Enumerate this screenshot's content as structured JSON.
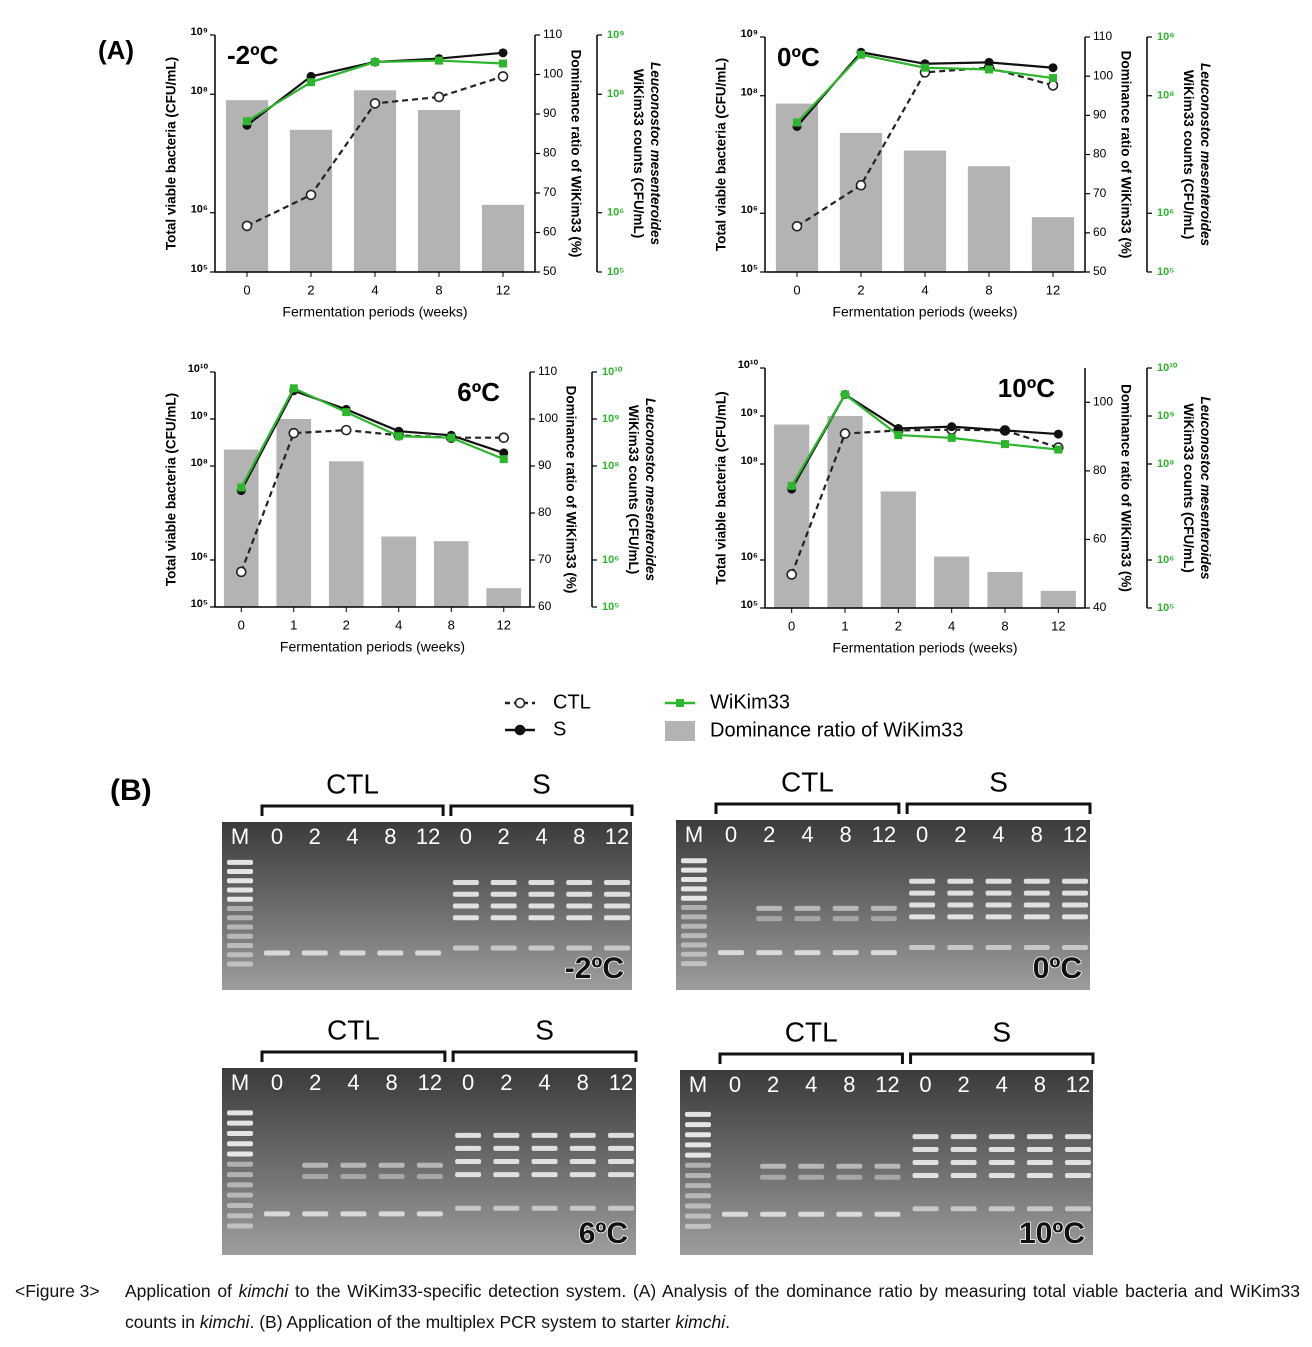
{
  "panel_a": "(A)",
  "panel_b": "(B)",
  "legend": [
    {
      "name": "CTL",
      "color": "#222222",
      "marker": "open-circle",
      "dash": true
    },
    {
      "name": "S",
      "color": "#111111",
      "marker": "circle",
      "dash": false
    },
    {
      "name": "WiKim33",
      "color": "#2db52d",
      "marker": "square",
      "dash": false
    },
    {
      "name": "Dominance ratio of WiKim33",
      "color": "#b3b3b3",
      "marker": "bar",
      "dash": false
    }
  ],
  "chart_data": [
    {
      "type": "bar-line",
      "label": "-2ºC",
      "label_corner": "top-left",
      "xlabel": "Fermentation periods (weeks)",
      "ylabel": "Total viable bacteria (CFU/mL)",
      "y2label": "Dominance ratio of WiKim33 (%)",
      "y3label_italic": "Leuconostoc mesenteroides",
      "y3label": "WiKim33 counts (CFU/mL)",
      "categories": [
        "0",
        "2",
        "4",
        "8",
        "12"
      ],
      "log_y": true,
      "ylim": [
        100000.0,
        1000000000.0
      ],
      "yticks": [
        {
          "value": 100000.0,
          "label": "10⁵"
        },
        {
          "value": 1000000.0,
          "label": "10⁶"
        },
        {
          "value": 100000000.0,
          "label": "10⁸"
        },
        {
          "value": 1000000000.0,
          "label": "10⁹"
        }
      ],
      "y2lim": [
        50,
        110
      ],
      "y2ticks": [
        50,
        60,
        70,
        80,
        90,
        100,
        110
      ],
      "y3lim": [
        100000.0,
        1000000000.0
      ],
      "y3ticks": [
        {
          "value": 100000.0,
          "label": "10⁵"
        },
        {
          "value": 1000000.0,
          "label": "10⁶"
        },
        {
          "value": 100000000.0,
          "label": "10⁸"
        },
        {
          "value": 1000000000.0,
          "label": "10⁹"
        }
      ],
      "series": [
        {
          "values": [
            600000.0,
            2000000.0,
            70000000.0,
            90000000.0,
            200000000.0
          ]
        },
        {
          "values": [
            30000000.0,
            200000000.0,
            350000000.0,
            400000000.0,
            500000000.0
          ]
        },
        {
          "values": [
            35000000.0,
            160000000.0,
            350000000.0,
            370000000.0,
            330000000.0
          ]
        },
        {
          "axis": "y2",
          "values": [
            93.5,
            86,
            96,
            91,
            67
          ]
        }
      ]
    },
    {
      "type": "bar-line",
      "label": "0ºC",
      "label_corner": "top-left",
      "xlabel": "Fermentation periods (weeks)",
      "ylabel": "Total viable bacteria (CFU/mL)",
      "y2label": "Dominance ratio of WiKim33 (%)",
      "y3label_italic": "Leuconostoc mesenteroides",
      "y3label": "WiKim33 counts (CFU/mL)",
      "categories": [
        "0",
        "2",
        "4",
        "8",
        "12"
      ],
      "log_y": true,
      "ylim": [
        100000.0,
        1000000000.0
      ],
      "yticks": [
        {
          "value": 100000.0,
          "label": "10⁵"
        },
        {
          "value": 1000000.0,
          "label": "10⁶"
        },
        {
          "value": 100000000.0,
          "label": "10⁸"
        },
        {
          "value": 1000000000.0,
          "label": "10⁹"
        }
      ],
      "y2lim": [
        50,
        110
      ],
      "y2ticks": [
        50,
        60,
        70,
        80,
        90,
        100,
        110
      ],
      "y3lim": [
        100000.0,
        1000000000.0
      ],
      "y3ticks": [
        {
          "value": 100000.0,
          "label": "10⁵"
        },
        {
          "value": 1000000.0,
          "label": "10⁶"
        },
        {
          "value": 100000000.0,
          "label": "10⁸"
        },
        {
          "value": 1000000000.0,
          "label": "10⁹"
        }
      ],
      "series": [
        {
          "values": [
            600000.0,
            3000000.0,
            250000000.0,
            300000000.0,
            150000000.0
          ]
        },
        {
          "values": [
            30000000.0,
            550000000.0,
            350000000.0,
            370000000.0,
            300000000.0
          ]
        },
        {
          "values": [
            35000000.0,
            500000000.0,
            300000000.0,
            280000000.0,
            200000000.0
          ]
        },
        {
          "axis": "y2",
          "values": [
            93,
            85.5,
            81,
            77,
            64
          ]
        }
      ]
    },
    {
      "type": "bar-line",
      "label": "6ºC",
      "label_corner": "top-right",
      "xlabel": "Fermentation periods (weeks)",
      "ylabel": "Total viable bacteria (CFU/mL)",
      "y2label": "Dominance ratio of WiKim33 (%)",
      "y3label_italic": "Leuconostoc mesenteroides",
      "y3label": "WiKim33 counts (CFU/mL)",
      "categories": [
        "0",
        "1",
        "2",
        "4",
        "8",
        "12"
      ],
      "log_y": true,
      "ylim": [
        100000.0,
        10000000000.0
      ],
      "yticks": [
        {
          "value": 100000.0,
          "label": "10⁵"
        },
        {
          "value": 1000000.0,
          "label": "10⁶"
        },
        {
          "value": 100000000.0,
          "label": "10⁸"
        },
        {
          "value": 1000000000.0,
          "label": "10⁹"
        },
        {
          "value": 10000000000.0,
          "label": "10¹⁰"
        }
      ],
      "y2lim": [
        60,
        110
      ],
      "y2ticks": [
        60,
        70,
        80,
        90,
        100,
        110
      ],
      "y3lim": [
        100000.0,
        10000000000.0
      ],
      "y3ticks": [
        {
          "value": 100000.0,
          "label": "10⁵"
        },
        {
          "value": 1000000.0,
          "label": "10⁶"
        },
        {
          "value": 100000000.0,
          "label": "10⁸"
        },
        {
          "value": 1000000000.0,
          "label": "10⁹"
        },
        {
          "value": 10000000000.0,
          "label": "10¹⁰"
        }
      ],
      "series": [
        {
          "values": [
            560000.0,
            500000000.0,
            580000000.0,
            450000000.0,
            400000000.0,
            400000000.0
          ]
        },
        {
          "values": [
            30000000.0,
            4000000000.0,
            1600000000.0,
            550000000.0,
            450000000.0,
            190000000.0
          ]
        },
        {
          "values": [
            35000000.0,
            4500000000.0,
            1400000000.0,
            430000000.0,
            400000000.0,
            140000000.0
          ]
        },
        {
          "axis": "y2",
          "values": [
            93.5,
            100,
            91,
            75,
            74,
            64
          ]
        }
      ]
    },
    {
      "type": "bar-line",
      "label": "10ºC",
      "label_corner": "top-right",
      "xlabel": "Fermentation periods (weeks)",
      "ylabel": "Total viable bacteria (CFU/mL)",
      "y2label": "Dominance ratio of WiKim33 (%)",
      "y3label_italic": "Leuconostoc mesenteroides",
      "y3label": "WiKim33 counts (CFU/mL)",
      "categories": [
        "0",
        "1",
        "2",
        "4",
        "8",
        "12"
      ],
      "log_y": true,
      "ylim": [
        100000.0,
        10000000000.0
      ],
      "yticks": [
        {
          "value": 100000.0,
          "label": "10⁵"
        },
        {
          "value": 1000000.0,
          "label": "10⁶"
        },
        {
          "value": 100000000.0,
          "label": "10⁸"
        },
        {
          "value": 1000000000.0,
          "label": "10⁹"
        },
        {
          "value": 10000000000.0,
          "label": "10¹⁰"
        }
      ],
      "y2lim": [
        40,
        110
      ],
      "y2ticks": [
        40,
        60,
        80,
        100
      ],
      "y3lim": [
        100000.0,
        10000000000.0
      ],
      "y3ticks": [
        {
          "value": 100000.0,
          "label": "10⁵"
        },
        {
          "value": 1000000.0,
          "label": "10⁶"
        },
        {
          "value": 100000000.0,
          "label": "10⁸"
        },
        {
          "value": 1000000000.0,
          "label": "10⁹"
        },
        {
          "value": 10000000000.0,
          "label": "10¹⁰"
        }
      ],
      "series": [
        {
          "values": [
            500000.0,
            430000000.0,
            500000000.0,
            520000000.0,
            500000000.0,
            220000000.0
          ]
        },
        {
          "values": [
            30000000.0,
            2800000000.0,
            550000000.0,
            600000000.0,
            500000000.0,
            420000000.0
          ]
        },
        {
          "values": [
            35000000.0,
            2800000000.0,
            400000000.0,
            350000000.0,
            260000000.0,
            200000000.0
          ]
        },
        {
          "axis": "y2",
          "values": [
            93.5,
            96,
            74,
            55,
            50.5,
            45
          ]
        }
      ]
    }
  ],
  "gels": [
    {
      "groups": [
        "CTL",
        "S"
      ],
      "lanes": [
        "M",
        "0",
        "2",
        "4",
        "8",
        "12",
        "0",
        "2",
        "4",
        "8",
        "12"
      ],
      "label": "-2ºC"
    },
    {
      "groups": [
        "CTL",
        "S"
      ],
      "lanes": [
        "M",
        "0",
        "2",
        "4",
        "8",
        "12",
        "0",
        "2",
        "4",
        "8",
        "12"
      ],
      "label": "0ºC"
    },
    {
      "groups": [
        "CTL",
        "S"
      ],
      "lanes": [
        "M",
        "0",
        "2",
        "4",
        "8",
        "12",
        "0",
        "2",
        "4",
        "8",
        "12"
      ],
      "label": "6ºC"
    },
    {
      "groups": [
        "CTL",
        "S"
      ],
      "lanes": [
        "M",
        "0",
        "2",
        "4",
        "8",
        "12",
        "0",
        "2",
        "4",
        "8",
        "12"
      ],
      "label": "10ºC"
    }
  ],
  "caption": {
    "label": "<Figure 3>",
    "parts": [
      "Application of ",
      "kimchi",
      " to the WiKim33-specific detection system. (A) Analysis of the dominance ratio by measuring total viable bacteria and WiKim33 counts in ",
      "kimchi",
      ". (B) Application of the multiplex PCR system to starter ",
      "kimchi",
      "."
    ]
  }
}
